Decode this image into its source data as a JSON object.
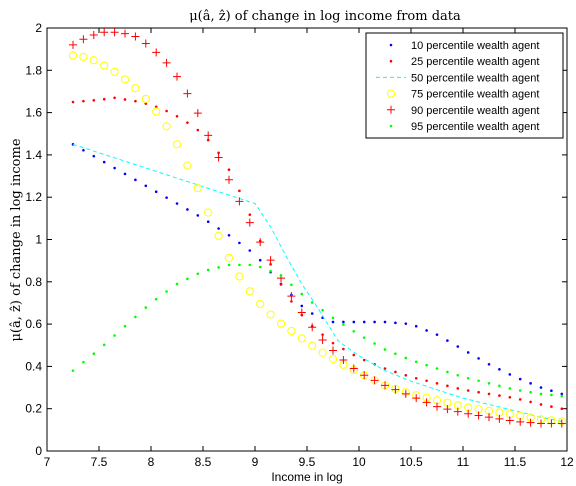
{
  "chart_data": {
    "type": "line",
    "title": "μ(â, ẑ) of change in log income from data",
    "xlabel": "Income in log",
    "ylabel": "μ(â, ẑ) of change in log income",
    "xlim": [
      7,
      12
    ],
    "ylim": [
      0,
      2
    ],
    "xticks": [
      "7",
      "7.5",
      "8",
      "8.5",
      "9",
      "9.5",
      "10",
      "10.5",
      "11",
      "11.5",
      "12"
    ],
    "yticks": [
      "0",
      "0.2",
      "0.4",
      "0.6",
      "0.8",
      "1",
      "1.2",
      "1.4",
      "1.6",
      "1.8",
      "2"
    ],
    "grid": false,
    "legend_position": "top-right",
    "series": [
      {
        "name": "10 percentile wealth agent",
        "color": "#0000ff",
        "marker": "dot",
        "points": [
          [
            7.25,
            1.45
          ],
          [
            7.5,
            1.38
          ],
          [
            7.75,
            1.31
          ],
          [
            8.0,
            1.24
          ],
          [
            8.25,
            1.17
          ],
          [
            8.5,
            1.1
          ],
          [
            8.75,
            1.02
          ],
          [
            9.0,
            0.93
          ],
          [
            9.25,
            0.79
          ],
          [
            9.5,
            0.66
          ],
          [
            9.75,
            0.61
          ],
          [
            10.0,
            0.61
          ],
          [
            10.25,
            0.61
          ],
          [
            10.5,
            0.6
          ],
          [
            10.75,
            0.55
          ],
          [
            11.0,
            0.48
          ],
          [
            11.25,
            0.41
          ],
          [
            11.5,
            0.35
          ],
          [
            11.75,
            0.3
          ],
          [
            11.95,
            0.27
          ]
        ]
      },
      {
        "name": "25 percentile wealth agent",
        "color": "#ff0000",
        "marker": "dot",
        "points": [
          [
            7.25,
            1.65
          ],
          [
            7.5,
            1.66
          ],
          [
            7.65,
            1.67
          ],
          [
            7.9,
            1.65
          ],
          [
            8.1,
            1.62
          ],
          [
            8.3,
            1.57
          ],
          [
            8.5,
            1.5
          ],
          [
            8.7,
            1.38
          ],
          [
            8.9,
            1.18
          ],
          [
            9.1,
            0.93
          ],
          [
            9.3,
            0.74
          ],
          [
            9.5,
            0.61
          ],
          [
            9.75,
            0.51
          ],
          [
            10.0,
            0.44
          ],
          [
            10.25,
            0.39
          ],
          [
            10.5,
            0.35
          ],
          [
            10.75,
            0.32
          ],
          [
            11.0,
            0.29
          ],
          [
            11.25,
            0.27
          ],
          [
            11.5,
            0.25
          ],
          [
            11.75,
            0.22
          ],
          [
            11.95,
            0.2
          ]
        ]
      },
      {
        "name": "50 percentile wealth agent",
        "color": "#00ffff",
        "marker": "dashed",
        "points": [
          [
            7.25,
            1.45
          ],
          [
            7.5,
            1.41
          ],
          [
            7.75,
            1.37
          ],
          [
            8.0,
            1.33
          ],
          [
            8.25,
            1.29
          ],
          [
            8.5,
            1.25
          ],
          [
            8.75,
            1.21
          ],
          [
            9.0,
            1.17
          ],
          [
            9.15,
            1.06
          ],
          [
            9.3,
            0.92
          ],
          [
            9.45,
            0.79
          ],
          [
            9.6,
            0.68
          ],
          [
            9.8,
            0.52
          ],
          [
            10.0,
            0.45
          ],
          [
            10.25,
            0.38
          ],
          [
            10.5,
            0.33
          ],
          [
            10.75,
            0.29
          ],
          [
            11.0,
            0.25
          ],
          [
            11.25,
            0.22
          ],
          [
            11.5,
            0.19
          ],
          [
            11.75,
            0.16
          ],
          [
            11.95,
            0.14
          ]
        ]
      },
      {
        "name": "75 percentile wealth agent",
        "color": "#ffff00",
        "marker": "circle",
        "points": [
          [
            7.25,
            1.87
          ],
          [
            7.4,
            1.86
          ],
          [
            7.6,
            1.81
          ],
          [
            7.8,
            1.74
          ],
          [
            8.0,
            1.64
          ],
          [
            8.2,
            1.5
          ],
          [
            8.4,
            1.3
          ],
          [
            8.6,
            1.07
          ],
          [
            8.8,
            0.86
          ],
          [
            9.0,
            0.72
          ],
          [
            9.2,
            0.62
          ],
          [
            9.4,
            0.55
          ],
          [
            9.6,
            0.48
          ],
          [
            9.8,
            0.42
          ],
          [
            10.0,
            0.37
          ],
          [
            10.25,
            0.31
          ],
          [
            10.5,
            0.27
          ],
          [
            10.75,
            0.24
          ],
          [
            11.0,
            0.21
          ],
          [
            11.25,
            0.19
          ],
          [
            11.5,
            0.17
          ],
          [
            11.75,
            0.15
          ],
          [
            11.95,
            0.14
          ]
        ]
      },
      {
        "name": "90 percentile wealth agent",
        "color": "#ff0000",
        "marker": "plus",
        "points": [
          [
            7.25,
            1.92
          ],
          [
            7.4,
            1.96
          ],
          [
            7.55,
            1.98
          ],
          [
            7.7,
            1.98
          ],
          [
            7.85,
            1.96
          ],
          [
            8.0,
            1.91
          ],
          [
            8.2,
            1.81
          ],
          [
            8.4,
            1.65
          ],
          [
            8.6,
            1.44
          ],
          [
            8.8,
            1.23
          ],
          [
            9.0,
            1.03
          ],
          [
            9.2,
            0.86
          ],
          [
            9.4,
            0.69
          ],
          [
            9.6,
            0.55
          ],
          [
            9.8,
            0.45
          ],
          [
            10.0,
            0.37
          ],
          [
            10.25,
            0.31
          ],
          [
            10.5,
            0.26
          ],
          [
            10.75,
            0.21
          ],
          [
            11.0,
            0.18
          ],
          [
            11.25,
            0.16
          ],
          [
            11.5,
            0.14
          ],
          [
            11.75,
            0.13
          ],
          [
            11.95,
            0.13
          ]
        ]
      },
      {
        "name": "95 percentile wealth agent",
        "color": "#00ff00",
        "marker": "dot",
        "points": [
          [
            7.25,
            0.38
          ],
          [
            7.5,
            0.48
          ],
          [
            7.75,
            0.59
          ],
          [
            8.0,
            0.7
          ],
          [
            8.25,
            0.79
          ],
          [
            8.5,
            0.85
          ],
          [
            8.75,
            0.88
          ],
          [
            9.0,
            0.88
          ],
          [
            9.25,
            0.83
          ],
          [
            9.5,
            0.72
          ],
          [
            9.75,
            0.63
          ],
          [
            10.0,
            0.55
          ],
          [
            10.25,
            0.48
          ],
          [
            10.5,
            0.43
          ],
          [
            10.75,
            0.39
          ],
          [
            11.0,
            0.35
          ],
          [
            11.25,
            0.32
          ],
          [
            11.5,
            0.29
          ],
          [
            11.75,
            0.27
          ],
          [
            11.95,
            0.26
          ]
        ]
      }
    ]
  }
}
